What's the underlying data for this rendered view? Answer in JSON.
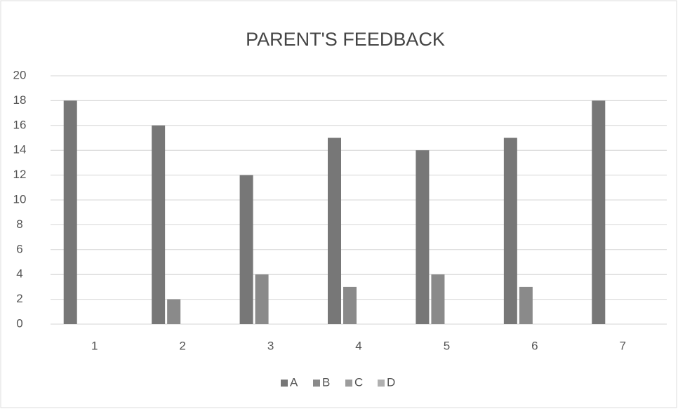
{
  "chart_data": {
    "type": "bar",
    "title": "PARENT'S FEEDBACK",
    "categories": [
      "1",
      "2",
      "3",
      "4",
      "5",
      "6",
      "7"
    ],
    "series": [
      {
        "name": "A",
        "color": "#777777",
        "values": [
          18,
          16,
          12,
          15,
          14,
          15,
          18
        ]
      },
      {
        "name": "B",
        "color": "#8a8a8a",
        "values": [
          0,
          2,
          4,
          3,
          4,
          3,
          0
        ]
      },
      {
        "name": "C",
        "color": "#9c9c9c",
        "values": [
          0,
          0,
          0,
          0,
          0,
          0,
          0
        ]
      },
      {
        "name": "D",
        "color": "#b0b0b0",
        "values": [
          0,
          0,
          0,
          0,
          0,
          0,
          0
        ]
      }
    ],
    "ylim": [
      0,
      20
    ],
    "yticks": [
      0,
      2,
      4,
      6,
      8,
      10,
      12,
      14,
      16,
      18,
      20
    ],
    "grid": true,
    "legend": "bottom"
  }
}
